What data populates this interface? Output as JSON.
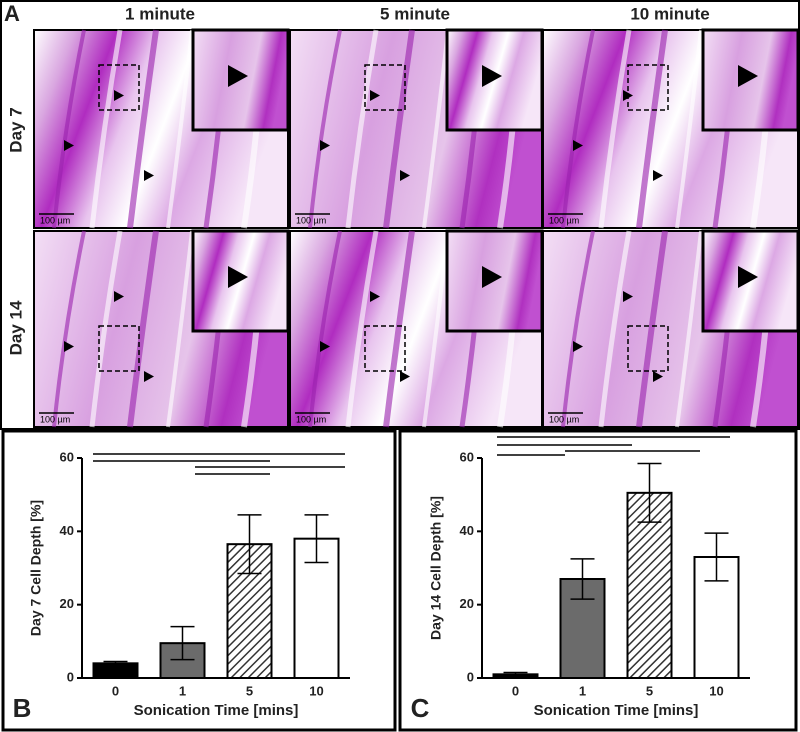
{
  "panel_labels": {
    "a": "A",
    "b": "B",
    "c": "C"
  },
  "histology": {
    "columns": [
      "1 minute",
      "5 minute",
      "10 minute"
    ],
    "rows": [
      "Day 7",
      "Day 14"
    ],
    "scale_bar": "100 µm"
  },
  "chart_data": [
    {
      "type": "bar",
      "ylabel": "Day 7 Cell Depth [%]",
      "xlabel": "Sonication Time [mins]",
      "categories": [
        "0",
        "1",
        "5",
        "10"
      ],
      "values": [
        4,
        9.5,
        36.5,
        38
      ],
      "errors": [
        0.5,
        4.5,
        8,
        6.5
      ],
      "colors": [
        "#000000",
        "#6b6b6b",
        "#ffffff",
        "#ffffff"
      ],
      "hatched": [
        false,
        false,
        true,
        false
      ],
      "ylim": [
        0,
        60
      ],
      "yticks": [
        0,
        20,
        40,
        60
      ]
    },
    {
      "type": "bar",
      "ylabel": "Day 14 Cell Depth [%]",
      "xlabel": "Sonication Time [mins]",
      "categories": [
        "0",
        "1",
        "5",
        "10"
      ],
      "values": [
        1,
        27,
        50.5,
        33
      ],
      "errors": [
        0.5,
        5.5,
        8,
        6.5
      ],
      "colors": [
        "#000000",
        "#6b6b6b",
        "#ffffff",
        "#ffffff"
      ],
      "hatched": [
        false,
        false,
        true,
        false
      ],
      "ylim": [
        0,
        60
      ],
      "yticks": [
        0,
        20,
        40,
        60
      ]
    }
  ]
}
